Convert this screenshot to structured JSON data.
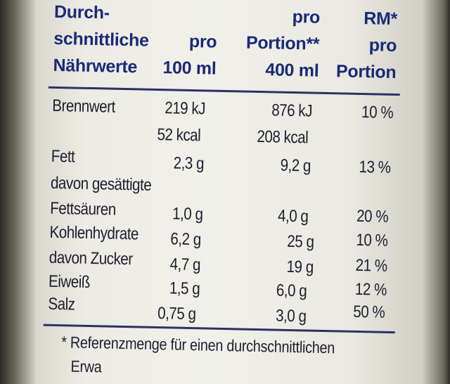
{
  "header": {
    "col1_l1": "Durch-",
    "col1_l2": "schnittliche",
    "col1_l3": "Nährwerte",
    "col2_l1": "pro",
    "col2_l2": "100 ml",
    "col3_l1": "pro",
    "col3_l2": "Portion**",
    "col3_l3": "400 ml",
    "col4_l1": "RM*",
    "col4_l2": "pro",
    "col4_l3": "Portion"
  },
  "rows": [
    {
      "name": "Brennwert",
      "per100": "219 kJ",
      "portion": "876 kJ",
      "rm": "10 %"
    },
    {
      "name": "",
      "per100": "52 kcal",
      "portion": "208 kcal",
      "rm": ""
    },
    {
      "name": "Fett",
      "per100": "2,3 g",
      "portion": "9,2 g",
      "rm": "13 %"
    },
    {
      "name": "davon gesättigte",
      "per100": "",
      "portion": "",
      "rm": ""
    },
    {
      "name": "Fettsäuren",
      "per100": "1,0 g",
      "portion": "4,0 g",
      "rm": "20 %"
    },
    {
      "name": "Kohlenhydrate",
      "per100": "6,2 g",
      "portion": "25 g",
      "rm": "10 %"
    },
    {
      "name": "davon Zucker",
      "per100": "4,7 g",
      "portion": "19 g",
      "rm": "21 %"
    },
    {
      "name": "Eiweiß",
      "per100": "1,5 g",
      "portion": "6,0 g",
      "rm": "12 %"
    },
    {
      "name": "Salz",
      "per100": "0,75 g",
      "portion": "3,0 g",
      "rm": "50 %"
    }
  ],
  "footnote": "* Referenzmenge für einen durchschnittlichen",
  "footnote_cut": "Erwa"
}
